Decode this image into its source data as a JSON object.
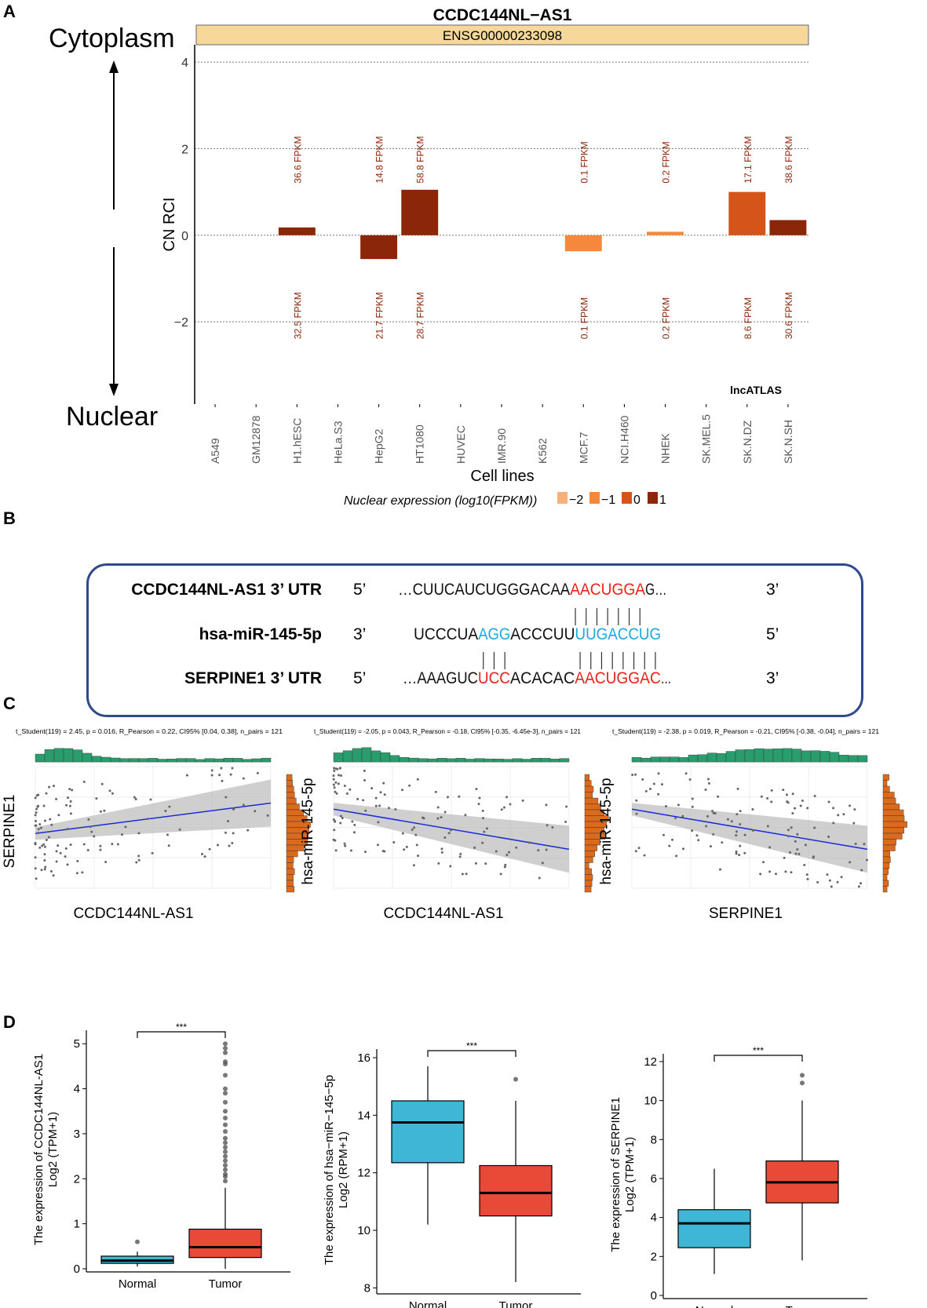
{
  "panels": {
    "a": "A",
    "b": "B",
    "c": "C",
    "d": "D"
  },
  "colors": {
    "fpkm_m2": "#f6b07a",
    "fpkm_m1": "#f5883a",
    "fpkm_0": "#d4541a",
    "fpkm_1": "#8b2608",
    "label_red": "#8b2608",
    "strip": "#f7d89a",
    "cyan": "#1ea8e0",
    "red": "#e8231c",
    "normal_box": "#3fb6d6",
    "tumor_box": "#e84a37",
    "hist_green": "#2a9d6e",
    "hist_orange": "#d96a1e",
    "box_border": "#2f4a8a"
  },
  "panel_a": {
    "side_top": "Cytoplasm",
    "side_bottom": "Nuclear",
    "watermark": "lncATLAS",
    "legend_title": "Nuclear expression (log10(FPKM))",
    "legend_items": [
      {
        "label": "−2",
        "color": "#f6b07a"
      },
      {
        "label": "−1",
        "color": "#f5883a"
      },
      {
        "label": "0",
        "color": "#d4541a"
      },
      {
        "label": "1",
        "color": "#8b2608"
      }
    ]
  },
  "chart_data": [
    {
      "type": "bar",
      "title": "CCDC144NL−AS1",
      "subtitle": "ENSG00000233098",
      "xlabel": "Cell lines",
      "ylabel": "CN RCI",
      "ylim": [
        -3.9,
        4.4
      ],
      "yticks": [
        -2,
        0,
        2,
        4
      ],
      "ytick_labels": [
        "−2",
        "0",
        "2",
        "4"
      ],
      "categories": [
        "A549",
        "GM12878",
        "H1.hESC",
        "HeLa.S3",
        "HepG2",
        "HT1080",
        "HUVEC",
        "IMR.90",
        "K562",
        "MCF.7",
        "NCI.H460",
        "NHEK",
        "SK.MEL.5",
        "SK.N.DZ",
        "SK.N.SH"
      ],
      "values": [
        null,
        null,
        0.18,
        null,
        -0.55,
        1.05,
        null,
        null,
        null,
        -0.37,
        null,
        0.08,
        null,
        1.0,
        0.35
      ],
      "nuclear_log10_fpkm": [
        null,
        null,
        1.5,
        null,
        1.3,
        1.5,
        null,
        null,
        null,
        -1,
        null,
        -0.7,
        null,
        0.9,
        1.5
      ],
      "cyto_labels": [
        null,
        null,
        "36.6 FPKM",
        null,
        "14.8 FPKM",
        "58.8 FPKM",
        null,
        null,
        null,
        "0.1 FPKM",
        null,
        "0.2 FPKM",
        null,
        "17.1 FPKM",
        "38.6 FPKM"
      ],
      "nuc_labels": [
        null,
        null,
        "32.5 FPKM",
        null,
        "21.7 FPKM",
        "28.7 FPKM",
        null,
        null,
        null,
        "0.1 FPKM",
        null,
        "0.2 FPKM",
        null,
        "8.6 FPKM",
        "30.6 FPKM"
      ]
    },
    {
      "type": "scatter",
      "stats": "t_Student(119) = 2.45, p = 0.016, R_Pearson = 0.22, CI95% [0.04, 0.38], n_pairs = 121",
      "xlabel": "CCDC144NL-AS1",
      "ylabel": "SERPINE1",
      "trend": "positive"
    },
    {
      "type": "scatter",
      "stats": "t_Student(119) = -2.05, p = 0.043, R_Pearson = -0.18, CI95% [-0.35, -6.45e-3], n_pairs = 121",
      "xlabel": "CCDC144NL-AS1",
      "ylabel": "hsa-miR-145-5p",
      "trend": "negative"
    },
    {
      "type": "scatter",
      "stats": "t_Student(119) = -2.38, p = 0.019, R_Pearson = -0.21, CI95% [-0.38, -0.04], n_pairs = 121",
      "xlabel": "SERPINE1",
      "ylabel": "hsa-miR-145-5p",
      "trend": "negative"
    },
    {
      "type": "box",
      "ylabel_line1": "The expression of CCDC144NL-AS1",
      "ylabel_line2": "Log2 (TPM+1)",
      "ylim": [
        0,
        5.3
      ],
      "yticks": [
        0,
        1,
        2,
        3,
        4,
        5
      ],
      "categories": [
        "Normal",
        "Tumor"
      ],
      "significance": "***",
      "boxes": [
        {
          "name": "Normal",
          "q1": 0.12,
          "median": 0.18,
          "q3": 0.28,
          "whisker_low": 0.05,
          "whisker_high": 0.38,
          "outliers": [
            0.6
          ]
        },
        {
          "name": "Tumor",
          "q1": 0.25,
          "median": 0.48,
          "q3": 0.88,
          "whisker_low": 0.0,
          "whisker_high": 1.8,
          "outliers": [
            1.95,
            2.05,
            2.1,
            2.2,
            2.3,
            2.4,
            2.5,
            2.6,
            2.7,
            2.8,
            2.9,
            3.05,
            3.2,
            3.35,
            3.5,
            3.7,
            3.9,
            4.0,
            4.3,
            4.55,
            4.6,
            4.8,
            4.9,
            5.0
          ]
        }
      ]
    },
    {
      "type": "box",
      "ylabel_line1": "The expression of hsa−miR−145−5p",
      "ylabel_line2": "Log2 (RPM+1)",
      "ylim": [
        7.9,
        16.3
      ],
      "yticks": [
        8,
        10,
        12,
        14,
        16
      ],
      "categories": [
        "Normal",
        "Tumor"
      ],
      "significance": "***",
      "boxes": [
        {
          "name": "Normal",
          "q1": 12.35,
          "median": 13.75,
          "q3": 14.5,
          "whisker_low": 10.2,
          "whisker_high": 15.7,
          "outliers": []
        },
        {
          "name": "Tumor",
          "q1": 10.5,
          "median": 11.3,
          "q3": 12.25,
          "whisker_low": 8.2,
          "whisker_high": 14.5,
          "outliers": [
            15.25
          ]
        }
      ]
    },
    {
      "type": "box",
      "ylabel_line1": "The expression of SERPINE1",
      "ylabel_line2": "Log2 (TPM+1)",
      "ylim": [
        0,
        12.4
      ],
      "yticks": [
        0,
        2,
        4,
        6,
        8,
        10,
        12
      ],
      "categories": [
        "Normal",
        "Tumor"
      ],
      "significance": "***",
      "boxes": [
        {
          "name": "Normal",
          "q1": 2.45,
          "median": 3.7,
          "q3": 4.4,
          "whisker_low": 1.1,
          "whisker_high": 6.5,
          "outliers": []
        },
        {
          "name": "Tumor",
          "q1": 4.75,
          "median": 5.8,
          "q3": 6.9,
          "whisker_low": 1.8,
          "whisker_high": 10.0,
          "outliers": [
            10.9,
            11.3
          ]
        }
      ]
    }
  ],
  "panel_b": {
    "rows": [
      {
        "name": "CCDC144NL-AS1 3’ UTR",
        "end_left": "5’",
        "end_right": "3’",
        "segments": [
          {
            "t": "…CUUCAUCUGGGACAA",
            "c": "k"
          },
          {
            "t": "AACUGGA",
            "c": "r"
          },
          {
            "t": "G…",
            "c": "k"
          }
        ]
      },
      {
        "name": "hsa-miR-145-5p",
        "end_left": "3’",
        "end_right": "5’",
        "segments": [
          {
            "t": "UCCCUA",
            "c": "k"
          },
          {
            "t": "AGG",
            "c": "b"
          },
          {
            "t": "ACCCUU",
            "c": "k"
          },
          {
            "t": "UUGACCUG",
            "c": "b"
          }
        ]
      },
      {
        "name": "SERPINE1 3’ UTR",
        "end_left": "5’",
        "end_right": "3’",
        "segments": [
          {
            "t": "…AAAGUC",
            "c": "k"
          },
          {
            "t": "UCC",
            "c": "r"
          },
          {
            "t": "ACACAC",
            "c": "k"
          },
          {
            "t": "AACUGGAC",
            "c": "r"
          },
          {
            "t": "…",
            "c": "k"
          }
        ]
      }
    ]
  }
}
